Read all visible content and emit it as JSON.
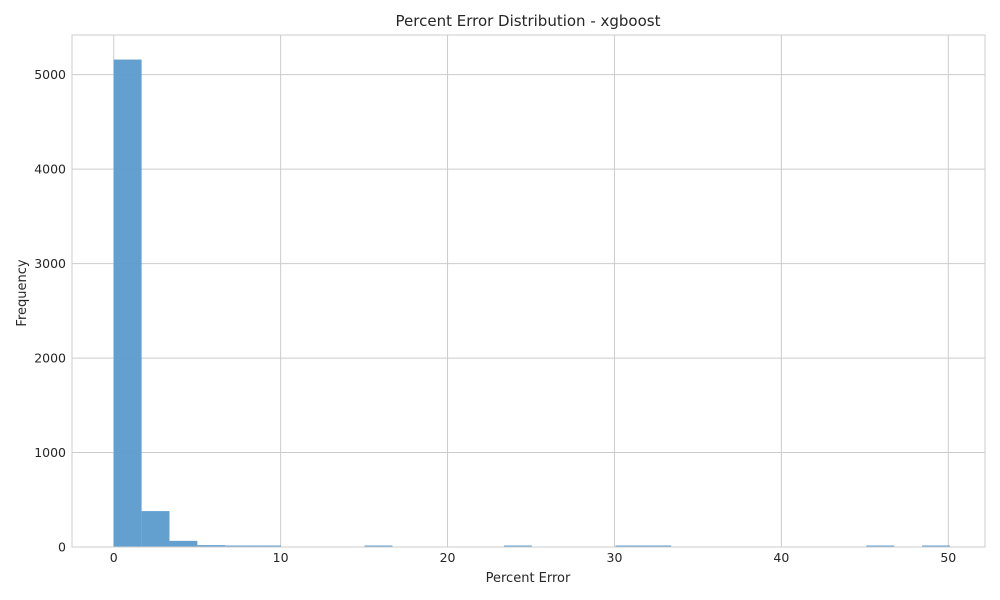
{
  "chart_data": {
    "type": "bar",
    "title": "Percent Error Distribution - xgboost",
    "xlabel": "Percent Error",
    "ylabel": "Frequency",
    "xlim": [
      -2.5,
      52.2
    ],
    "ylim": [
      0,
      5420
    ],
    "grid": true,
    "legend": "none",
    "bar_color": "#5b9bcd",
    "bin_width": 1.67,
    "bin_edges_start": 0,
    "values": [
      5160,
      380,
      65,
      20,
      8,
      6,
      0,
      0,
      0,
      4,
      0,
      0,
      0,
      0,
      4,
      0,
      0,
      0,
      4,
      4,
      0,
      0,
      0,
      0,
      0,
      0,
      0,
      3,
      0,
      3
    ],
    "x_ticks": [
      0,
      10,
      20,
      30,
      40,
      50
    ],
    "x_tick_labels": [
      "0",
      "10",
      "20",
      "30",
      "40",
      "50"
    ],
    "y_ticks": [
      0,
      1000,
      2000,
      3000,
      4000,
      5000
    ],
    "y_tick_labels": [
      "0",
      "1000",
      "2000",
      "3000",
      "4000",
      "5000"
    ]
  }
}
